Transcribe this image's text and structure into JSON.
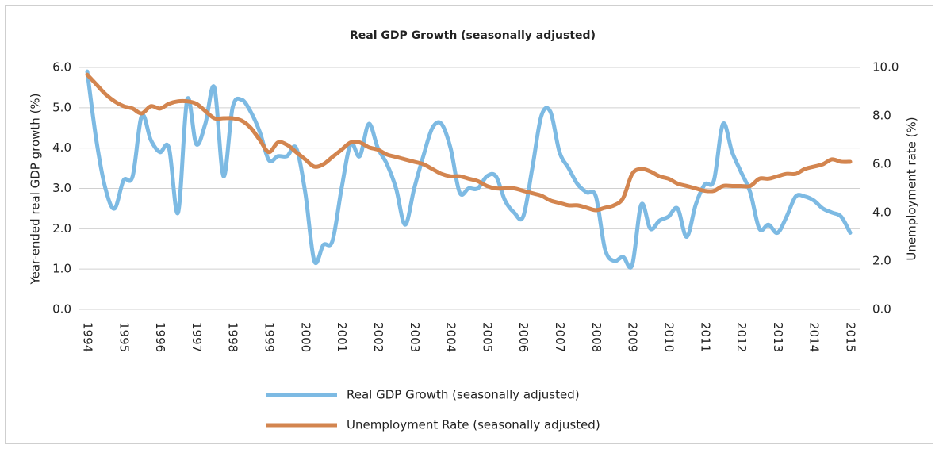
{
  "chart_data": {
    "type": "line",
    "title": "Real GDP Growth (seasonally adjusted)",
    "y_label": "Year-ended real GDP growth (%)",
    "y2_label": "Unemployment rate (%)",
    "categories": [
      "1994",
      null,
      null,
      null,
      "1995",
      null,
      null,
      null,
      "1996",
      null,
      null,
      null,
      "1997",
      null,
      null,
      null,
      "1998",
      null,
      null,
      null,
      "1999",
      null,
      null,
      null,
      "2000",
      null,
      null,
      null,
      "2001",
      null,
      null,
      null,
      "2002",
      null,
      null,
      null,
      "2003",
      null,
      null,
      null,
      "2004",
      null,
      null,
      null,
      "2005",
      null,
      null,
      null,
      "2006",
      null,
      null,
      null,
      "2007",
      null,
      null,
      null,
      "2008",
      null,
      null,
      null,
      "2009",
      null,
      null,
      null,
      "2010",
      null,
      null,
      null,
      "2011",
      null,
      null,
      null,
      "2012",
      null,
      null,
      null,
      "2013",
      null,
      null,
      null,
      "2014",
      null,
      null,
      null,
      "2015"
    ],
    "series": [
      {
        "name": "Real GDP Growth (seasonally adjusted)",
        "color": "#7dbae3",
        "axis": "y",
        "values": [
          5.9,
          4.2,
          3.0,
          2.5,
          3.2,
          3.3,
          4.8,
          4.2,
          3.9,
          4.0,
          2.4,
          5.2,
          4.1,
          4.6,
          5.5,
          3.3,
          5.0,
          5.2,
          4.9,
          4.4,
          3.7,
          3.8,
          3.8,
          4.0,
          2.9,
          1.2,
          1.6,
          1.7,
          3.0,
          4.1,
          3.8,
          4.6,
          4.0,
          3.6,
          3.0,
          2.1,
          3.0,
          3.8,
          4.5,
          4.6,
          4.0,
          2.9,
          3.0,
          3.0,
          3.3,
          3.3,
          2.7,
          2.4,
          2.3,
          3.5,
          4.8,
          4.9,
          3.9,
          3.5,
          3.1,
          2.9,
          2.8,
          1.5,
          1.2,
          1.3,
          1.1,
          2.6,
          2.0,
          2.2,
          2.3,
          2.5,
          1.8,
          2.6,
          3.1,
          3.2,
          4.6,
          3.9,
          3.4,
          2.9,
          2.0,
          2.1,
          1.9,
          2.3,
          2.8,
          2.8,
          2.7,
          2.5,
          2.4,
          2.3,
          1.9
        ]
      },
      {
        "name": "Unemployment Rate (seasonally adjusted)",
        "color": "#d3854f",
        "axis": "y2",
        "values": [
          9.7,
          9.3,
          8.9,
          8.6,
          8.4,
          8.3,
          8.1,
          8.4,
          8.3,
          8.5,
          8.6,
          8.6,
          8.5,
          8.2,
          7.9,
          7.9,
          7.9,
          7.8,
          7.5,
          7.0,
          6.5,
          6.9,
          6.8,
          6.5,
          6.2,
          5.9,
          6.0,
          6.3,
          6.6,
          6.9,
          6.9,
          6.7,
          6.6,
          6.4,
          6.3,
          6.2,
          6.1,
          6.0,
          5.8,
          5.6,
          5.5,
          5.5,
          5.4,
          5.3,
          5.1,
          5.0,
          5.0,
          5.0,
          4.9,
          4.8,
          4.7,
          4.5,
          4.4,
          4.3,
          4.3,
          4.2,
          4.1,
          4.2,
          4.3,
          4.6,
          5.6,
          5.8,
          5.7,
          5.5,
          5.4,
          5.2,
          5.1,
          5.0,
          4.9,
          4.9,
          5.1,
          5.1,
          5.1,
          5.1,
          5.4,
          5.4,
          5.5,
          5.6,
          5.6,
          5.8,
          5.9,
          6.0,
          6.2,
          6.1,
          6.1
        ]
      }
    ],
    "ylim": [
      0,
      6
    ],
    "yticks": [
      {
        "value": 0,
        "label": "0.0"
      },
      {
        "value": 1,
        "label": "1.0"
      },
      {
        "value": 2,
        "label": "2.0"
      },
      {
        "value": 3,
        "label": "3.0"
      },
      {
        "value": 4,
        "label": "4.0"
      },
      {
        "value": 5,
        "label": "5.0"
      },
      {
        "value": 6,
        "label": "6.0"
      }
    ],
    "y2lim": [
      0,
      10
    ],
    "y2ticks": [
      {
        "value": 0,
        "label": "0.0"
      },
      {
        "value": 2,
        "label": "2.0"
      },
      {
        "value": 4,
        "label": "4.0"
      },
      {
        "value": 6,
        "label": "6.0"
      },
      {
        "value": 8,
        "label": "8.0"
      },
      {
        "value": 10,
        "label": "10.0"
      }
    ],
    "grid": true,
    "legend": "bottom"
  }
}
